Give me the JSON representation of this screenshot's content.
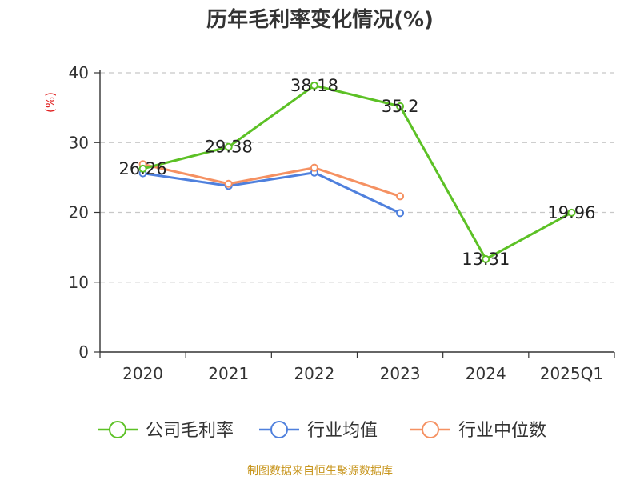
{
  "chart_data": {
    "type": "line",
    "title": "历年毛利率变化情况(%)",
    "ylabel": "(%)",
    "categories": [
      "2020",
      "2021",
      "2022",
      "2023",
      "2024",
      "2025Q1"
    ],
    "ylim": [
      0,
      40
    ],
    "yticks": [
      0,
      10,
      20,
      30,
      40
    ],
    "grid": true,
    "legend_position": "bottom",
    "series": [
      {
        "name": "公司毛利率",
        "color": "#5cc125",
        "values": [
          26.26,
          29.38,
          38.18,
          35.2,
          13.31,
          19.96
        ],
        "labels": [
          "26.26",
          "29.38",
          "38.18",
          "35.2",
          "13.31",
          "19.96"
        ]
      },
      {
        "name": "行业均值",
        "color": "#4f80dd",
        "values": [
          25.6,
          23.8,
          25.7,
          19.9,
          null,
          null
        ]
      },
      {
        "name": "行业中位数",
        "color": "#f59162",
        "values": [
          26.9,
          24.1,
          26.4,
          22.3,
          null,
          null
        ]
      }
    ]
  },
  "footer": {
    "source": "制图数据来自恒生聚源数据库"
  }
}
